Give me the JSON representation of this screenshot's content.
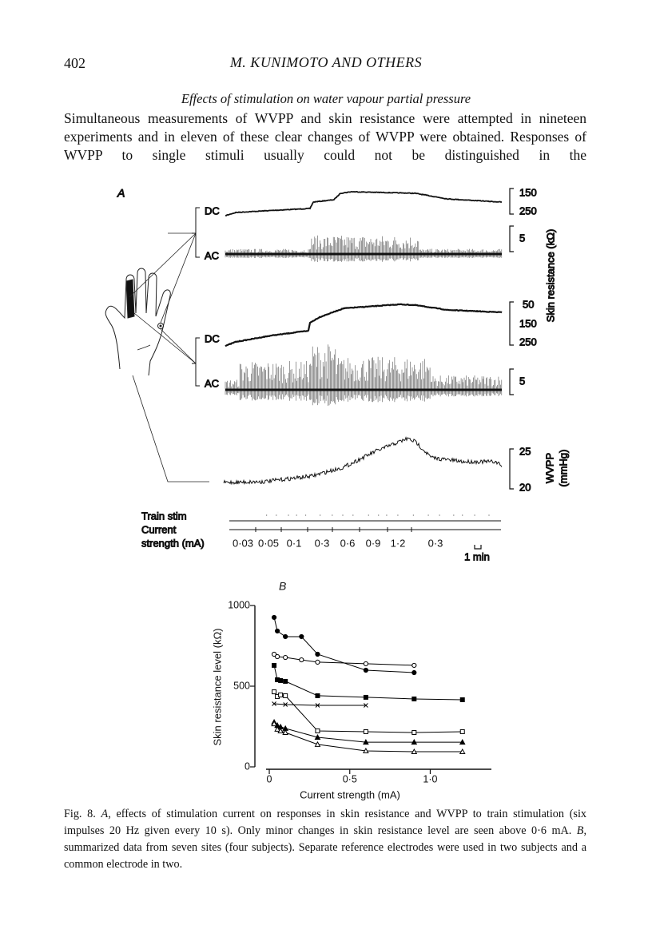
{
  "header": {
    "page_number": "402",
    "running_title": "M. KUNIMOTO AND OTHERS"
  },
  "section_title": "Effects of stimulation on water vapour partial pressure",
  "paragraph": "Simultaneous measurements of WVPP and skin resistance were attempted in nineteen experiments and in eleven of these clear changes of WVPP were obtained. Responses of WVPP to single stimuli usually could not be distinguished in the",
  "figure_a": {
    "panel_label": "A",
    "top": {
      "dc_label": "DC",
      "ac_label": "AC",
      "dc_scale": [
        "150",
        "250"
      ],
      "ac_scale": "5"
    },
    "middle": {
      "dc_label": "DC",
      "ac_label": "AC",
      "dc_scale": [
        "50",
        "150",
        "250"
      ],
      "ac_scale": "5"
    },
    "skin_resistance_label": "Skin resistance (kΩ)",
    "wvpp_scale": [
      "25",
      "20"
    ],
    "wvpp_label": [
      "WVPP",
      "(mmHg)"
    ],
    "train_stim_label": "Train stim",
    "current_label": [
      "Current",
      "strength (mA)"
    ],
    "current_values": [
      "0·03",
      "0·05",
      "0·1",
      "0·3",
      "0·6",
      "0·9",
      "1·2",
      "0·3"
    ],
    "time_scale": "1 min"
  },
  "chart_data": {
    "type": "line",
    "panel_label": "B",
    "x_label": "Current strength (mA)",
    "y_label": "Skin resistance level (kΩ)",
    "xlim": [
      -0.02,
      1.38
    ],
    "ylim": [
      0,
      1000
    ],
    "xticks": [
      0,
      {
        "value": 0.5,
        "label": "0·5"
      },
      {
        "value": 1.0,
        "label": "1·0"
      }
    ],
    "yticks": [
      0,
      500,
      1000
    ],
    "series": [
      {
        "marker": "filled-circle",
        "color": "#000000",
        "x": [
          0.03,
          0.05,
          0.1,
          0.2,
          0.3,
          0.6,
          0.9
        ],
        "values": [
          926,
          842,
          807,
          807,
          698,
          599,
          584
        ]
      },
      {
        "marker": "open-circle",
        "color": "#000000",
        "x": [
          0.03,
          0.05,
          0.1,
          0.2,
          0.3,
          0.6,
          0.9
        ],
        "values": [
          698,
          683,
          678,
          663,
          649,
          639,
          629
        ]
      },
      {
        "marker": "filled-square",
        "color": "#000000",
        "x": [
          0.03,
          0.05,
          0.07,
          0.1,
          0.3,
          0.6,
          0.9,
          1.2
        ],
        "values": [
          629,
          540,
          535,
          530,
          441,
          431,
          421,
          416
        ]
      },
      {
        "marker": "open-square",
        "color": "#000000",
        "x": [
          0.03,
          0.05,
          0.07,
          0.1,
          0.3,
          0.6,
          0.9,
          1.2
        ],
        "values": [
          465,
          436,
          446,
          441,
          223,
          218,
          213,
          218
        ]
      },
      {
        "marker": "x",
        "color": "#000000",
        "x": [
          0.03,
          0.1,
          0.3,
          0.6
        ],
        "values": [
          391,
          386,
          381,
          381
        ]
      },
      {
        "marker": "filled-triangle",
        "color": "#000000",
        "x": [
          0.03,
          0.05,
          0.07,
          0.1,
          0.3,
          0.6,
          0.9,
          1.2
        ],
        "values": [
          277,
          257,
          248,
          238,
          183,
          153,
          153,
          153
        ]
      },
      {
        "marker": "open-triangle",
        "color": "#000000",
        "x": [
          0.03,
          0.05,
          0.07,
          0.1,
          0.3,
          0.6,
          0.9,
          1.2
        ],
        "values": [
          267,
          233,
          223,
          213,
          139,
          99,
          94,
          94
        ]
      }
    ]
  },
  "caption": [
    "Fig. 8. ",
    "A",
    ", effects of stimulation current on responses in skin resistance and WVPP to train stimulation (six impulses 20 Hz given every 10 s). Only minor changes in skin resistance level are seen above 0·6 mA. ",
    "B",
    ", summarized data from seven sites (four subjects). Separate reference electrodes were used in two subjects and a common electrode in two."
  ]
}
